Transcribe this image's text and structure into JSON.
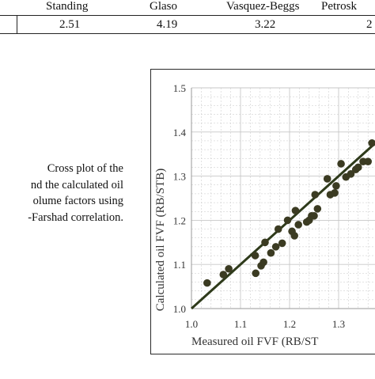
{
  "table": {
    "headers": [
      "Standing",
      "Glaso",
      "Vasquez-Beggs",
      "Petrosk"
    ],
    "values": [
      "2.51",
      "4.19",
      "3.22",
      "2"
    ]
  },
  "caption": {
    "lines": [
      "Cross plot of the",
      "nd the calculated oil",
      "olume factors using",
      "-Farshad correlation."
    ]
  },
  "chart_data": {
    "type": "scatter",
    "xlabel": "Measured oil FVF (RB/ST",
    "ylabel": "Calculated oil FVF (RB/STB)",
    "xlim": [
      1.0,
      1.4
    ],
    "ylim": [
      1.0,
      1.5
    ],
    "x_ticks": [
      "1.0",
      "1.1",
      "1.2",
      "1.3"
    ],
    "y_ticks": [
      "1.0",
      "1.1",
      "1.2",
      "1.3",
      "1.4",
      "1.5"
    ],
    "grid": true,
    "points": [
      {
        "x": 1.032,
        "y": 1.058
      },
      {
        "x": 1.065,
        "y": 1.077
      },
      {
        "x": 1.076,
        "y": 1.09
      },
      {
        "x": 1.131,
        "y": 1.08
      },
      {
        "x": 1.13,
        "y": 1.12
      },
      {
        "x": 1.142,
        "y": 1.097
      },
      {
        "x": 1.147,
        "y": 1.105
      },
      {
        "x": 1.15,
        "y": 1.15
      },
      {
        "x": 1.162,
        "y": 1.126
      },
      {
        "x": 1.172,
        "y": 1.14
      },
      {
        "x": 1.177,
        "y": 1.18
      },
      {
        "x": 1.185,
        "y": 1.148
      },
      {
        "x": 1.196,
        "y": 1.2
      },
      {
        "x": 1.205,
        "y": 1.175
      },
      {
        "x": 1.21,
        "y": 1.165
      },
      {
        "x": 1.212,
        "y": 1.222
      },
      {
        "x": 1.218,
        "y": 1.19
      },
      {
        "x": 1.235,
        "y": 1.196
      },
      {
        "x": 1.24,
        "y": 1.2
      },
      {
        "x": 1.245,
        "y": 1.21
      },
      {
        "x": 1.25,
        "y": 1.21
      },
      {
        "x": 1.252,
        "y": 1.258
      },
      {
        "x": 1.257,
        "y": 1.226
      },
      {
        "x": 1.277,
        "y": 1.294
      },
      {
        "x": 1.283,
        "y": 1.258
      },
      {
        "x": 1.292,
        "y": 1.262
      },
      {
        "x": 1.295,
        "y": 1.278
      },
      {
        "x": 1.305,
        "y": 1.328
      },
      {
        "x": 1.315,
        "y": 1.298
      },
      {
        "x": 1.325,
        "y": 1.305
      },
      {
        "x": 1.335,
        "y": 1.315
      },
      {
        "x": 1.34,
        "y": 1.32
      },
      {
        "x": 1.35,
        "y": 1.333
      },
      {
        "x": 1.36,
        "y": 1.333
      },
      {
        "x": 1.368,
        "y": 1.375
      }
    ],
    "fit_line": {
      "x": [
        1.0,
        1.4
      ],
      "y": [
        1.0,
        1.4
      ]
    },
    "colors": {
      "points": "#3b3b22",
      "line": "#2e3a1a",
      "grid": "#c7c7c7"
    }
  }
}
